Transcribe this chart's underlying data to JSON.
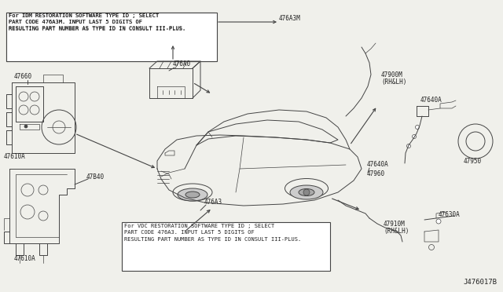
{
  "bg_color": "#f0f0eb",
  "line_color": "#444444",
  "text_color": "#222222",
  "title_diagram_id": "J476017B",
  "note_top": "For IDM RESTORATION SOFTWARE TYPE ID ; SELECT\nPART CODE 476A3M. INPUT LAST 5 DIGITS OF\nRESULTING PART NUMBER AS TYPE ID IN CONSULT III-PLUS.",
  "note_bottom": "For VDC RESTORATION SOFTWARE TYPE ID ; SELECT\nPART CODE 476A3. INPUT LAST 5 DIGITS OF\nRESULTING PART NUMBER AS TYPE ID IN CONSULT III-PLUS.",
  "fig_width": 6.4,
  "fig_height": 3.72,
  "dpi": 100,
  "label_fontsize": 5.5,
  "note_fontsize": 5.0
}
